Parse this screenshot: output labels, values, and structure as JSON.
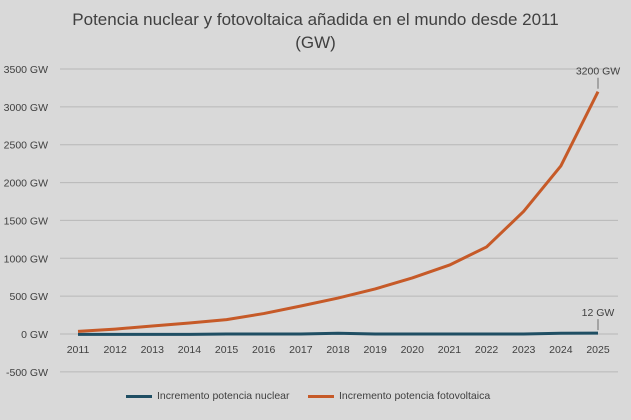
{
  "chart_data": {
    "type": "line",
    "title": "Potencia nuclear y fotovoltaica añadida en el mundo desde 2011 (GW)",
    "title_lines": [
      "Potencia nuclear y fotovoltaica añadida en el mundo desde 2011",
      "(GW)"
    ],
    "x": [
      2011,
      2012,
      2013,
      2014,
      2015,
      2016,
      2017,
      2018,
      2019,
      2020,
      2021,
      2022,
      2023,
      2024,
      2025
    ],
    "ylim": [
      -500,
      3500
    ],
    "yticks": [
      -500,
      0,
      500,
      1000,
      1500,
      2000,
      2500,
      3000,
      3500
    ],
    "ytick_labels": [
      "-500 GW",
      "0 GW",
      "500 GW",
      "1000 GW",
      "1500 GW",
      "2000 GW",
      "2500 GW",
      "3000 GW",
      "3500 GW"
    ],
    "grid": true,
    "legend_position": "bottom",
    "series": [
      {
        "name": "Incremento potencia nuclear",
        "color": "#1f4e63",
        "values": [
          -5,
          -5,
          -5,
          -5,
          0,
          0,
          0,
          10,
          0,
          0,
          0,
          0,
          0,
          10,
          12
        ],
        "end_label": "12 GW"
      },
      {
        "name": "Incremento potencia fotovoltaica",
        "color": "#c65a28",
        "values": [
          35,
          65,
          105,
          145,
          190,
          270,
          370,
          475,
          595,
          740,
          910,
          1150,
          1620,
          2220,
          3200
        ],
        "end_label": "3200 GW"
      }
    ]
  }
}
